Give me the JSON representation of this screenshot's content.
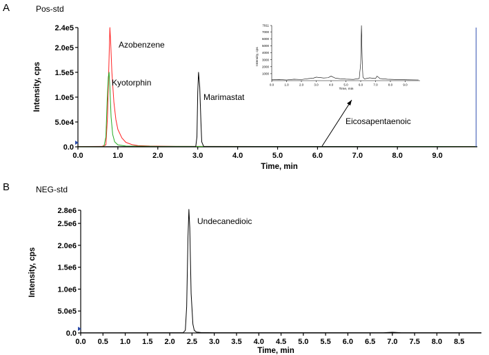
{
  "chart_data": [
    {
      "type": "line",
      "panel_label": "A",
      "title": "Pos-std",
      "xlabel": "Time, min",
      "ylabel": "Intensity, cps",
      "xlim": [
        0,
        10
      ],
      "ylim": [
        0,
        240000
      ],
      "x_ticks": [
        "0.0",
        "1.0",
        "2.0",
        "3.0",
        "4.0",
        "5.0",
        "6.0",
        "7.0",
        "8.0",
        "9.0"
      ],
      "y_ticks": [
        "0.0",
        "5.0e4",
        "1.0e5",
        "1.5e5",
        "2.0e5",
        "2.4e5"
      ],
      "y_tick_values": [
        0,
        50000,
        100000,
        150000,
        200000,
        240000
      ],
      "series": [
        {
          "color": "#ff2020",
          "x": [
            0,
            0.6,
            0.7,
            0.74,
            0.78,
            0.8,
            0.82,
            0.85,
            0.9,
            0.95,
            1.0,
            1.1,
            1.2,
            1.35,
            1.5,
            1.8,
            2.5,
            10
          ],
          "y": [
            500,
            800,
            4000,
            60000,
            180000,
            240000,
            210000,
            150000,
            90000,
            55000,
            35000,
            18000,
            9000,
            4500,
            2500,
            1500,
            800,
            600
          ]
        },
        {
          "color": "#22aa22",
          "x": [
            0,
            0.65,
            0.7,
            0.73,
            0.76,
            0.78,
            0.8,
            0.83,
            0.87,
            0.92,
            1.0,
            1.2,
            2.0,
            10
          ],
          "y": [
            300,
            600,
            20000,
            90000,
            140000,
            150000,
            120000,
            60000,
            25000,
            10000,
            4000,
            1500,
            800,
            600
          ]
        },
        {
          "color": "#000000",
          "x": [
            0,
            2.95,
            2.98,
            3.0,
            3.02,
            3.05,
            3.08,
            3.1,
            3.15,
            10
          ],
          "y": [
            300,
            400,
            20000,
            110000,
            150000,
            120000,
            50000,
            10000,
            500,
            400
          ]
        },
        {
          "color": "#3050b0",
          "x": [
            9.97,
            9.97
          ],
          "y": [
            0,
            240000
          ]
        }
      ],
      "annotations": [
        "Azobenzene",
        "Kyotorphin",
        "Marimastat",
        "Eicosapentaenoic"
      ],
      "inset": {
        "xlabel": "Time, min",
        "ylabel": "Intensity, cps",
        "xlim": [
          0,
          10
        ],
        "ylim": [
          0,
          7911
        ],
        "x_ticks": [
          "0.0",
          "1.0",
          "2.0",
          "3.0",
          "4.0",
          "5.0",
          "6.0",
          "7.0",
          "8.0",
          "9.0"
        ],
        "y_ticks": [
          "1000",
          "2000",
          "3000",
          "4000",
          "5000",
          "6000",
          "7000",
          "7911"
        ],
        "y_tick_values": [
          1000,
          2000,
          3000,
          4000,
          5000,
          6000,
          7000,
          7911
        ],
        "series": [
          {
            "color": "#000000",
            "x": [
              0,
              0.5,
              1.0,
              1.5,
              2.0,
              2.5,
              2.8,
              3.0,
              3.2,
              3.5,
              3.8,
              4.0,
              4.3,
              4.6,
              5.0,
              5.5,
              5.9,
              6.0,
              6.05,
              6.1,
              6.15,
              6.25,
              6.6,
              7.0,
              7.1,
              7.3,
              7.8,
              8.5,
              9.2,
              9.9
            ],
            "y": [
              120,
              150,
              100,
              200,
              160,
              300,
              350,
              500,
              450,
              380,
              420,
              650,
              350,
              280,
              220,
              180,
              300,
              2500,
              7911,
              3000,
              500,
              250,
              400,
              300,
              650,
              300,
              200,
              150,
              120,
              100
            ]
          }
        ]
      }
    },
    {
      "type": "line",
      "panel_label": "B",
      "title": "NEG-std",
      "xlabel": "Time, min",
      "ylabel": "Intensity, cps",
      "xlim": [
        0,
        9
      ],
      "ylim": [
        0,
        2800000
      ],
      "x_ticks": [
        "0.0",
        "0.5",
        "1.0",
        "1.5",
        "2.0",
        "2.5",
        "3.0",
        "3.5",
        "4.0",
        "4.5",
        "5.0",
        "5.5",
        "6.0",
        "6.5",
        "7.0",
        "7.5",
        "8.0",
        "8.5"
      ],
      "y_ticks": [
        "0.0",
        "5.0e5",
        "1.0e6",
        "1.5e6",
        "2.0e6",
        "2.5e6",
        "2.8e6"
      ],
      "y_tick_values": [
        0,
        500000,
        1000000,
        1500000,
        2000000,
        2500000,
        2800000
      ],
      "series": [
        {
          "color": "#000000",
          "x": [
            0,
            2.3,
            2.35,
            2.38,
            2.41,
            2.43,
            2.45,
            2.48,
            2.52,
            2.55,
            2.6,
            2.7,
            3.0,
            6.8,
            7.0,
            7.2,
            9
          ],
          "y": [
            4000,
            5000,
            60000,
            600000,
            2200000,
            2820000,
            2400000,
            900000,
            200000,
            60000,
            20000,
            10000,
            6000,
            6000,
            15000,
            6000,
            5000
          ]
        }
      ],
      "annotations": [
        "Undecanedioic"
      ]
    }
  ]
}
